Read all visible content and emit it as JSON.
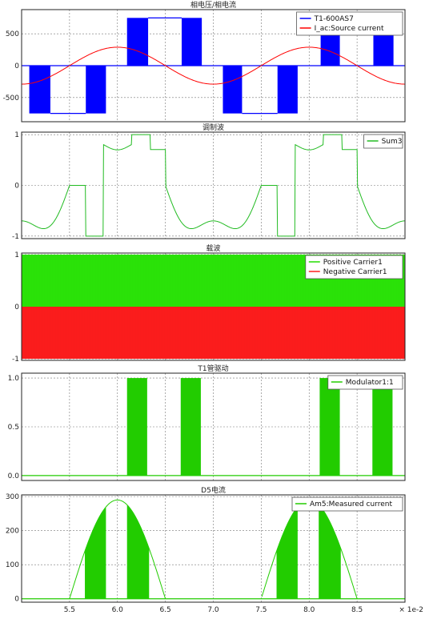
{
  "x_axis": {
    "ticks": [
      5.5,
      6.0,
      6.5,
      7.0,
      7.5,
      8.0,
      8.5
    ],
    "tick_labels": [
      "5.5",
      "6.0",
      "6.5",
      "7.0",
      "7.5",
      "8.0",
      "8.5"
    ],
    "range": [
      5.0,
      9.0
    ],
    "multiplier_label": "× 1e-2"
  },
  "chart_data": [
    {
      "type": "line",
      "title": "相电压/相电流",
      "ylim": [
        -880,
        880
      ],
      "yticks": [
        -500,
        0,
        500
      ],
      "ytick_labels": [
        "-500",
        "0",
        "500"
      ],
      "grid": true,
      "legend_position": "top-right",
      "series": [
        {
          "name": "T1-600AS7",
          "color": "#0000ff",
          "style": "pwm-blocks",
          "base_value": 0,
          "segments": [
            {
              "x_start": 5.08,
              "x_end": 5.3,
              "value": -750
            },
            {
              "x_start": 5.3,
              "x_end": 5.67,
              "value": -750,
              "filled": false
            },
            {
              "x_start": 5.67,
              "x_end": 5.88,
              "value": -750
            },
            {
              "x_start": 6.1,
              "x_end": 6.32,
              "value": 750
            },
            {
              "x_start": 6.32,
              "x_end": 6.67,
              "value": 750,
              "filled": false
            },
            {
              "x_start": 6.67,
              "x_end": 6.88,
              "value": 750
            },
            {
              "x_start": 7.1,
              "x_end": 7.3,
              "value": -750
            },
            {
              "x_start": 7.3,
              "x_end": 7.67,
              "value": -750,
              "filled": false
            },
            {
              "x_start": 7.67,
              "x_end": 7.88,
              "value": -750
            },
            {
              "x_start": 8.12,
              "x_end": 8.32,
              "value": 750
            },
            {
              "x_start": 8.32,
              "x_end": 8.67,
              "value": 750,
              "filled": false
            },
            {
              "x_start": 8.67,
              "x_end": 8.88,
              "value": 750
            }
          ]
        },
        {
          "name": "I_ac:Source current",
          "color": "#ff0000",
          "style": "sine",
          "amplitude": 290,
          "period": 2.0,
          "peak_x": 6.0
        }
      ]
    },
    {
      "type": "line",
      "title": "调制波",
      "ylim": [
        -1.05,
        1.05
      ],
      "yticks": [
        -1,
        0,
        1
      ],
      "ytick_labels": [
        "-1",
        "0",
        "1"
      ],
      "grid": true,
      "legend_position": "top-right",
      "series": [
        {
          "name": "Sum3",
          "color": "#22bb22",
          "style": "third-harmonic-injection",
          "sine_amplitude": 0.95,
          "third_harmonic_amplitude": 0.25,
          "period": 2.0,
          "peak_x": 6.0,
          "hold_x": [
            [
              5.5,
              5.67
            ],
            [
              6.34,
              6.5
            ],
            [
              7.5,
              7.67
            ],
            [
              8.34,
              8.5
            ]
          ],
          "flat_low_x": [
            [
              5.67,
              5.85
            ],
            [
              7.67,
              7.85
            ]
          ],
          "flat_high_x": [
            [
              6.15,
              6.34
            ],
            [
              8.15,
              8.34
            ]
          ]
        }
      ]
    },
    {
      "type": "area",
      "title": "载波",
      "ylim": [
        -1.03,
        1.03
      ],
      "yticks": [
        -1,
        0,
        1
      ],
      "ytick_labels": [
        "-1",
        "0",
        "1"
      ],
      "grid": true,
      "legend_position": "top-right",
      "series": [
        {
          "name": "Positive Carrier1",
          "color": "#22dd00",
          "range": [
            0,
            1
          ]
        },
        {
          "name": "Negative Carrier1",
          "color": "#ff2020",
          "range": [
            -1,
            0
          ]
        }
      ]
    },
    {
      "type": "bar",
      "title": "T1管驱动",
      "ylim": [
        -0.05,
        1.05
      ],
      "yticks": [
        0,
        0.5,
        1
      ],
      "ytick_labels": [
        "0.0",
        "0.5",
        "1.0"
      ],
      "grid": true,
      "legend_position": "top-right",
      "series": [
        {
          "name": "Modulator1:1",
          "color": "#22cc00",
          "base_value": 0,
          "pulse_groups": [
            {
              "x_start": 6.1,
              "x_end": 6.31,
              "value": 1
            },
            {
              "x_start": 6.66,
              "x_end": 6.87,
              "value": 1
            },
            {
              "x_start": 8.11,
              "x_end": 8.32,
              "value": 1
            },
            {
              "x_start": 8.66,
              "x_end": 8.87,
              "value": 1
            }
          ]
        }
      ]
    },
    {
      "type": "area",
      "title": "D5电流",
      "ylim": [
        -10,
        305
      ],
      "yticks": [
        0,
        100,
        200,
        300
      ],
      "ytick_labels": [
        "0",
        "100",
        "200",
        "300"
      ],
      "grid": true,
      "legend_position": "top-right",
      "series": [
        {
          "name": "Am5:Measured current",
          "color": "#22cc00",
          "amplitude": 290,
          "period": 2.0,
          "peak_x": 6.0,
          "base_value": 0,
          "filled_x": [
            [
              5.66,
              5.88
            ],
            [
              6.1,
              6.33
            ],
            [
              7.66,
              7.88
            ],
            [
              8.1,
              8.33
            ]
          ]
        }
      ]
    }
  ]
}
